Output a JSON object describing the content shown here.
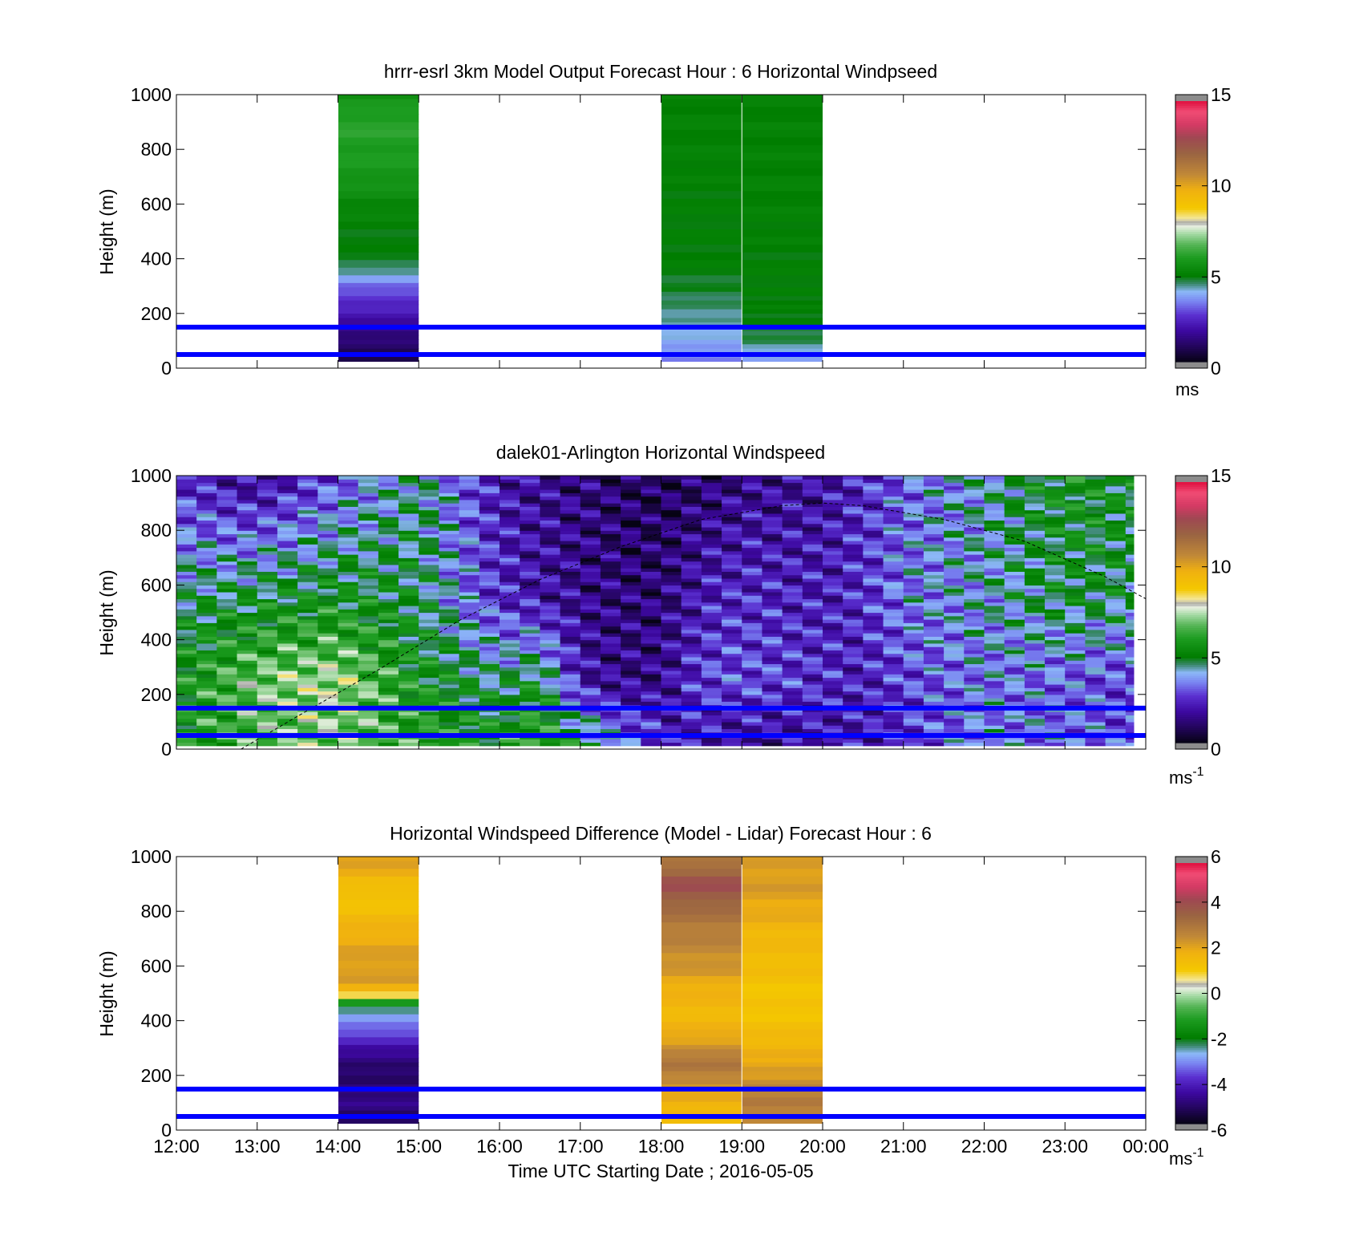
{
  "figure": {
    "xlabel": "Time UTC  Starting Date ; 2016-05-05",
    "xticks": [
      "12:00",
      "13:00",
      "14:00",
      "15:00",
      "16:00",
      "17:00",
      "18:00",
      "19:00",
      "20:00",
      "21:00",
      "22:00",
      "23:00",
      "00:00"
    ],
    "blue_line_color": "#0000ff"
  },
  "chart_data": [
    {
      "type": "heatmap",
      "title": "hrrr-esrl 3km Model Output   Forecast Hour : 6 Horizontal Windpseed",
      "ylabel": "Height (m)",
      "ylim": [
        0,
        1000
      ],
      "yticks": [
        "0",
        "200",
        "400",
        "600",
        "800",
        "1000"
      ],
      "xlim_hours": [
        12,
        24
      ],
      "colorbar": {
        "min": 0,
        "max": 15,
        "ticks": [
          "0",
          "5",
          "10",
          "15"
        ],
        "unit": "ms",
        "unit_sup": ""
      },
      "reference_lines_m": [
        50,
        150
      ],
      "columns": [
        {
          "t_start": 14,
          "t_end": 15,
          "heights_m": [
            20,
            50,
            100,
            150,
            200,
            250,
            300,
            350,
            400,
            450,
            500,
            600,
            700,
            800,
            900,
            1000
          ],
          "values": [
            0.3,
            0.8,
            1.2,
            1.5,
            2.2,
            2.6,
            3.2,
            4.2,
            5.0,
            4.8,
            5.0,
            5.3,
            5.8,
            6.0,
            6.2,
            5.6
          ]
        },
        {
          "t_start": 18,
          "t_end": 19,
          "heights_m": [
            20,
            50,
            100,
            150,
            200,
            250,
            300,
            400,
            600,
            800,
            1000
          ],
          "values": [
            3.4,
            3.6,
            3.9,
            4.2,
            4.4,
            4.6,
            4.8,
            5.0,
            5.0,
            5.1,
            5.1
          ]
        },
        {
          "t_start": 19,
          "t_end": 20,
          "heights_m": [
            20,
            50,
            100,
            200,
            400,
            600,
            800,
            1000
          ],
          "values": [
            3.6,
            4.0,
            4.6,
            5.0,
            5.0,
            5.1,
            5.1,
            5.1
          ]
        }
      ]
    },
    {
      "type": "heatmap",
      "title": "dalek01-Arlington  Horizontal Windspeed",
      "ylabel": "Height (m)",
      "ylim": [
        0,
        1000
      ],
      "yticks": [
        "0",
        "200",
        "400",
        "600",
        "800",
        "1000"
      ],
      "xlim_hours": [
        12,
        24
      ],
      "colorbar": {
        "min": 0,
        "max": 15,
        "ticks": [
          "0",
          "5",
          "10",
          "15"
        ],
        "unit": "ms",
        "unit_sup": "-1"
      },
      "reference_lines_m": [
        50,
        150
      ],
      "boundary_layer_curve": {
        "t": [
          12.8,
          13.5,
          14.5,
          15.5,
          16.5,
          17.5,
          18.5,
          19.5,
          20.0,
          20.5,
          21.5,
          22.5,
          23.5,
          24.0
        ],
        "height_m": [
          0,
          120,
          290,
          470,
          620,
          740,
          840,
          890,
          900,
          890,
          840,
          760,
          630,
          550
        ]
      },
      "time_profiles": {
        "t": [
          12.0,
          13.0,
          14.0,
          15.0,
          16.0,
          16.5,
          17.0,
          17.5,
          18.0,
          18.5,
          19.0,
          20.0,
          20.5,
          21.0,
          22.0,
          23.0,
          24.0
        ],
        "low_level": [
          5.8,
          6.5,
          7.2,
          6.0,
          5.8,
          6.5,
          5.3,
          4.2,
          2.5,
          1.8,
          1.6,
          1.8,
          2.0,
          2.6,
          3.6,
          3.5,
          2.8
        ],
        "mid_level": [
          5.5,
          7.0,
          7.5,
          5.5,
          4.5,
          5.2,
          2.0,
          1.5,
          1.5,
          2.8,
          3.0,
          2.5,
          2.2,
          2.8,
          3.5,
          3.2,
          2.6
        ],
        "upper_level": [
          4.5,
          5.0,
          5.3,
          4.8,
          2.5,
          2.0,
          1.5,
          1.3,
          1.2,
          2.2,
          2.5,
          2.2,
          2.5,
          3.5,
          4.0,
          4.8,
          4.6
        ],
        "top_level": [
          2.5,
          1.5,
          3.0,
          4.5,
          2.0,
          1.6,
          1.4,
          1.0,
          0.8,
          1.0,
          1.5,
          1.8,
          2.5,
          3.2,
          4.2,
          5.5,
          5.0
        ]
      },
      "data_end_hour": 23.85
    },
    {
      "type": "heatmap",
      "title": "Horizontal Windspeed Difference (Model - Lidar) Forecast Hour : 6",
      "ylabel": "Height (m)",
      "ylim": [
        0,
        1000
      ],
      "yticks": [
        "0",
        "200",
        "400",
        "600",
        "800",
        "1000"
      ],
      "xlim_hours": [
        12,
        24
      ],
      "colorbar": {
        "min": -6,
        "max": 6,
        "ticks": [
          "-6",
          "-4",
          "-2",
          "0",
          "2",
          "4",
          "6"
        ],
        "unit": "ms",
        "unit_sup": "-1"
      },
      "reference_lines_m": [
        50,
        150
      ],
      "columns": [
        {
          "t_start": 14,
          "t_end": 15,
          "heights_m": [
            20,
            50,
            100,
            150,
            200,
            250,
            300,
            350,
            400,
            450,
            480,
            500,
            550,
            600,
            700,
            800,
            850,
            900,
            950,
            1000
          ],
          "values": [
            -5.5,
            -5.2,
            -4.8,
            -5.0,
            -5.2,
            -5.0,
            -4.5,
            -3.8,
            -3.0,
            -2.5,
            -0.5,
            1.5,
            2.2,
            2.3,
            2.0,
            1.5,
            1.2,
            1.5,
            2.0,
            2.2
          ]
        },
        {
          "t_start": 18,
          "t_end": 19,
          "heights_m": [
            20,
            50,
            100,
            150,
            200,
            250,
            300,
            400,
            500,
            600,
            700,
            800,
            850,
            900,
            950,
            1000
          ],
          "values": [
            1.5,
            1.7,
            1.8,
            2.2,
            2.8,
            3.2,
            2.5,
            1.6,
            1.8,
            2.4,
            2.8,
            3.3,
            3.8,
            4.2,
            3.5,
            3.0
          ]
        },
        {
          "t_start": 19,
          "t_end": 20,
          "heights_m": [
            20,
            50,
            100,
            150,
            200,
            300,
            400,
            500,
            600,
            700,
            800,
            900,
            1000
          ],
          "values": [
            2.5,
            2.8,
            3.0,
            2.8,
            2.3,
            1.8,
            1.3,
            1.2,
            1.5,
            1.6,
            2.0,
            2.3,
            2.2
          ]
        }
      ]
    }
  ]
}
